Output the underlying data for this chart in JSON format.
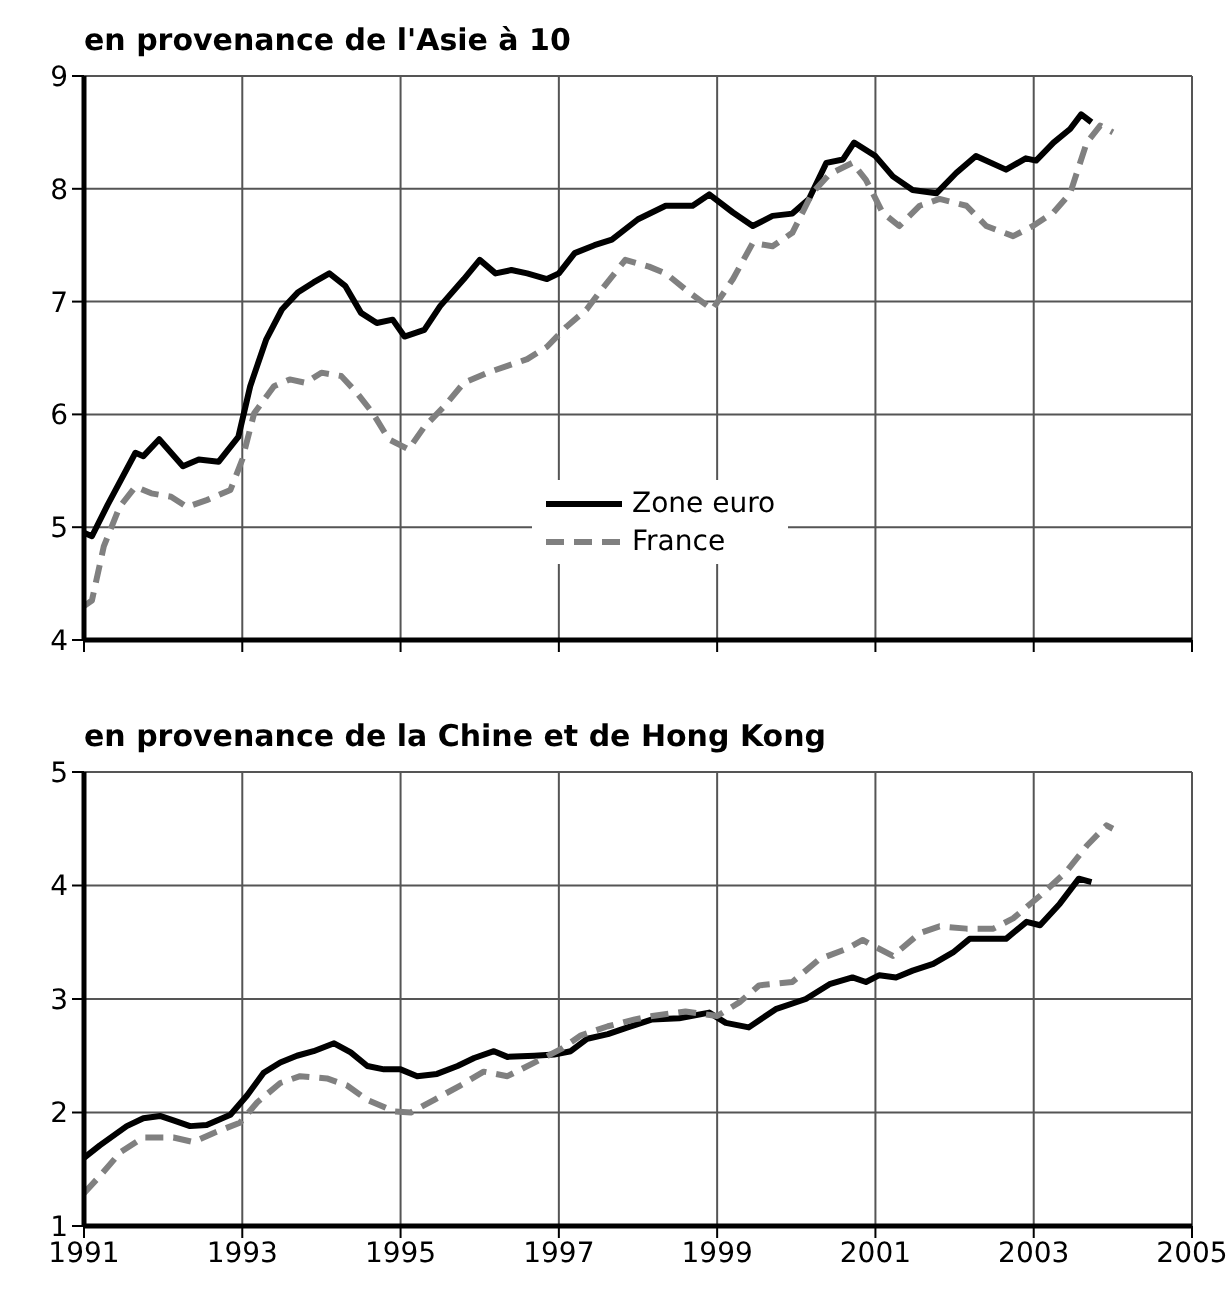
{
  "chart_data": [
    {
      "type": "line",
      "title": "en provenance de l'Asie à 10",
      "xlim": [
        1991,
        2005
      ],
      "xticks": [
        1991,
        1993,
        1995,
        1997,
        1999,
        2001,
        2003,
        2005
      ],
      "ylim": [
        4,
        9
      ],
      "yticks": [
        4,
        5,
        6,
        7,
        8,
        9
      ],
      "grid": true,
      "legend": "bottom center",
      "tick_labels": "y",
      "series": [
        {
          "name": "Zone euro",
          "color": "#000000",
          "line_style": "solid",
          "x": [
            1991.0,
            1991.1,
            1991.3,
            1991.65,
            1991.75,
            1991.95,
            1992.25,
            1992.45,
            1992.7,
            1992.95,
            1993.1,
            1993.3,
            1993.5,
            1993.7,
            1993.9,
            1994.1,
            1994.3,
            1994.5,
            1994.7,
            1994.9,
            1995.05,
            1995.3,
            1995.5,
            1995.8,
            1996.0,
            1996.2,
            1996.4,
            1996.6,
            1996.85,
            1997.0,
            1997.2,
            1997.45,
            1997.67,
            1998.0,
            1998.35,
            1998.69,
            1998.9,
            1999.2,
            1999.45,
            1999.7,
            1999.95,
            2000.16,
            2000.38,
            2000.59,
            2000.73,
            2001.0,
            2001.22,
            2001.47,
            2001.77,
            2002.02,
            2002.27,
            2002.65,
            2002.9,
            2003.03,
            2003.25,
            2003.46,
            2003.6,
            2003.73
          ],
          "values": [
            4.95,
            4.92,
            5.2,
            5.66,
            5.63,
            5.78,
            5.54,
            5.6,
            5.58,
            5.8,
            6.25,
            6.66,
            6.93,
            7.08,
            7.17,
            7.25,
            7.14,
            6.9,
            6.81,
            6.84,
            6.69,
            6.75,
            6.96,
            7.2,
            7.37,
            7.25,
            7.28,
            7.25,
            7.2,
            7.25,
            7.43,
            7.5,
            7.55,
            7.73,
            7.85,
            7.85,
            7.95,
            7.79,
            7.67,
            7.76,
            7.78,
            7.91,
            8.23,
            8.26,
            8.41,
            8.29,
            8.11,
            7.99,
            7.96,
            8.14,
            8.29,
            8.17,
            8.27,
            8.25,
            8.41,
            8.53,
            8.66,
            8.59
          ]
        },
        {
          "name": "France",
          "color": "#808080",
          "line_style": "dashed",
          "x": [
            1991.0,
            1991.1,
            1991.25,
            1991.45,
            1991.65,
            1991.85,
            1992.1,
            1992.3,
            1992.55,
            1992.85,
            1993.0,
            1993.15,
            1993.4,
            1993.6,
            1993.8,
            1994.0,
            1994.25,
            1994.45,
            1994.65,
            1994.85,
            1995.1,
            1995.3,
            1995.55,
            1995.8,
            1996.1,
            1996.35,
            1996.6,
            1996.85,
            1997.1,
            1997.35,
            1997.51,
            1997.84,
            1998.14,
            1998.35,
            1998.65,
            1998.94,
            1999.2,
            1999.45,
            1999.7,
            1999.95,
            2000.2,
            2000.42,
            2000.71,
            2000.88,
            2001.09,
            2001.3,
            2001.56,
            2001.81,
            2002.15,
            2002.4,
            2002.74,
            2002.99,
            2003.25,
            2003.46,
            2003.67,
            2003.84,
            2004.0
          ],
          "values": [
            4.3,
            4.35,
            4.83,
            5.18,
            5.36,
            5.3,
            5.27,
            5.18,
            5.24,
            5.33,
            5.6,
            6.01,
            6.25,
            6.31,
            6.28,
            6.37,
            6.34,
            6.19,
            6.01,
            5.78,
            5.69,
            5.89,
            6.07,
            6.28,
            6.37,
            6.43,
            6.49,
            6.6,
            6.78,
            6.93,
            7.08,
            7.37,
            7.31,
            7.25,
            7.08,
            6.93,
            7.2,
            7.52,
            7.49,
            7.61,
            7.96,
            8.13,
            8.23,
            8.08,
            7.79,
            7.67,
            7.85,
            7.91,
            7.85,
            7.67,
            7.58,
            7.67,
            7.79,
            7.96,
            8.41,
            8.56,
            8.5
          ]
        }
      ]
    },
    {
      "type": "line",
      "title": "en provenance de la Chine et de Hong Kong",
      "xlim": [
        1991,
        2005
      ],
      "xticks": [
        1991,
        1993,
        1995,
        1997,
        1999,
        2001,
        2003,
        2005
      ],
      "ylim": [
        1,
        5
      ],
      "yticks": [
        1,
        2,
        3,
        4,
        5
      ],
      "grid": true,
      "series": [
        {
          "color": "#000000",
          "line_style": "solid",
          "x": [
            1991.0,
            1991.2,
            1991.54,
            1991.75,
            1991.96,
            1992.13,
            1992.34,
            1992.55,
            1992.85,
            1993.06,
            1993.27,
            1993.48,
            1993.69,
            1993.9,
            1994.16,
            1994.37,
            1994.58,
            1994.79,
            1995.0,
            1995.21,
            1995.46,
            1995.72,
            1995.93,
            1996.18,
            1996.35,
            1996.69,
            1996.94,
            1997.15,
            1997.36,
            1997.62,
            1997.87,
            1998.18,
            1998.52,
            1998.9,
            1999.11,
            1999.4,
            1999.74,
            2000.12,
            2000.42,
            2000.71,
            2000.88,
            2001.05,
            2001.26,
            2001.47,
            2001.73,
            2001.98,
            2002.19,
            2002.65,
            2002.91,
            2003.08,
            2003.33,
            2003.57,
            2003.73
          ],
          "values": [
            1.6,
            1.71,
            1.88,
            1.95,
            1.97,
            1.93,
            1.88,
            1.89,
            1.98,
            2.15,
            2.35,
            2.44,
            2.5,
            2.54,
            2.61,
            2.53,
            2.41,
            2.38,
            2.38,
            2.32,
            2.34,
            2.41,
            2.48,
            2.54,
            2.49,
            2.5,
            2.51,
            2.54,
            2.65,
            2.69,
            2.75,
            2.82,
            2.83,
            2.88,
            2.79,
            2.75,
            2.91,
            3.0,
            3.13,
            3.19,
            3.15,
            3.21,
            3.19,
            3.25,
            3.31,
            3.41,
            3.53,
            3.53,
            3.68,
            3.65,
            3.84,
            4.06,
            4.03
          ]
        },
        {
          "color": "#808080",
          "line_style": "dashed",
          "x": [
            1991.0,
            1991.2,
            1991.46,
            1991.75,
            1992.13,
            1992.38,
            1992.64,
            1992.97,
            1993.19,
            1993.48,
            1993.73,
            1994.07,
            1994.32,
            1994.58,
            1994.92,
            1995.13,
            1995.42,
            1995.76,
            1996.05,
            1996.35,
            1996.69,
            1997.03,
            1997.28,
            1997.62,
            1997.96,
            1998.18,
            1998.6,
            1999.0,
            1999.28,
            1999.53,
            1999.95,
            2000.29,
            2000.63,
            2000.84,
            2000.97,
            2001.22,
            2001.56,
            2001.81,
            2002.15,
            2002.49,
            2002.74,
            2003.08,
            2003.41,
            2003.67,
            2003.92,
            2004.0
          ],
          "values": [
            1.29,
            1.44,
            1.65,
            1.78,
            1.78,
            1.74,
            1.82,
            1.91,
            2.09,
            2.26,
            2.32,
            2.3,
            2.24,
            2.11,
            2.01,
            2.0,
            2.11,
            2.24,
            2.36,
            2.32,
            2.44,
            2.56,
            2.68,
            2.76,
            2.82,
            2.85,
            2.89,
            2.85,
            2.97,
            3.12,
            3.15,
            3.35,
            3.44,
            3.52,
            3.47,
            3.38,
            3.58,
            3.64,
            3.62,
            3.62,
            3.71,
            3.91,
            4.12,
            4.35,
            4.53,
            4.5
          ]
        }
      ]
    }
  ]
}
